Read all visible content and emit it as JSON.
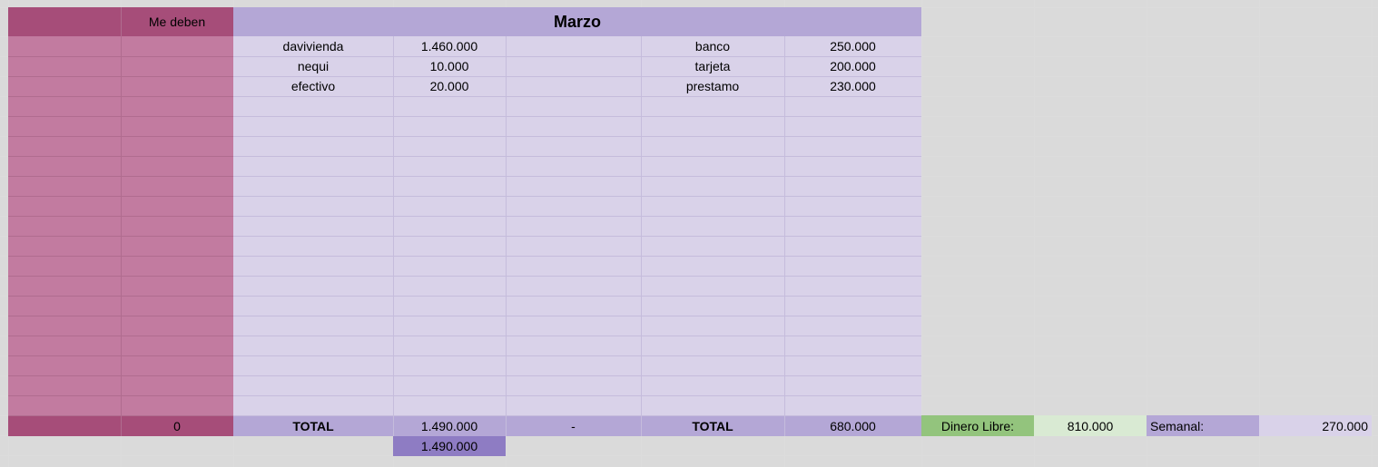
{
  "colors": {
    "debts_dark": "#a64d79",
    "debts_light": "#c27ba0",
    "month_header": "#b4a7d6",
    "month_body": "#d9d2e9",
    "total_extra": "#8e7cc3",
    "free_label": "#93c47d",
    "free_value": "#d9ead3"
  },
  "me_deben": {
    "header": "Me deben",
    "total": "0"
  },
  "month": {
    "title": "Marzo",
    "income": [
      {
        "label": "davivienda",
        "amount": "1.460.000"
      },
      {
        "label": "nequi",
        "amount": "10.000"
      },
      {
        "label": "efectivo",
        "amount": "20.000"
      }
    ],
    "expenses": [
      {
        "label": "banco",
        "amount": "250.000"
      },
      {
        "label": "tarjeta",
        "amount": "200.000"
      },
      {
        "label": "prestamo",
        "amount": "230.000"
      }
    ],
    "income_total_label": "TOTAL",
    "income_total": "1.490.000",
    "separator": "-",
    "expense_total_label": "TOTAL",
    "expense_total": "680.000",
    "income_total_copy": "1.490.000"
  },
  "summary": {
    "free_label": "Dinero Libre:",
    "free_value": "810.000",
    "weekly_label": "Semanal:",
    "weekly_value": "270.000"
  }
}
